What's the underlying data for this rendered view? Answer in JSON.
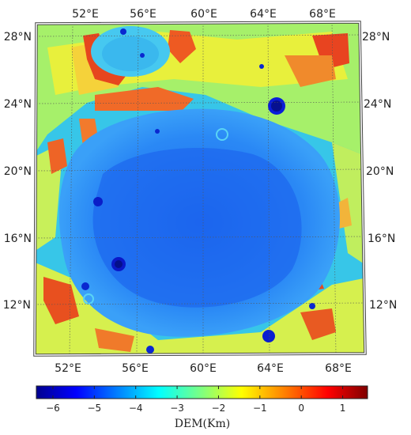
{
  "map": {
    "lon_ticks": [
      "52°E",
      "56°E",
      "60°E",
      "64°E",
      "68°E"
    ],
    "lat_ticks": [
      "28°N",
      "24°N",
      "20°N",
      "16°N",
      "12°N"
    ],
    "colormap": [
      "#00008f",
      "#0000ff",
      "#007fff",
      "#00ffff",
      "#7fff7f",
      "#ffff00",
      "#ff7f00",
      "#ff0000",
      "#7f0000"
    ]
  },
  "colorbar": {
    "title": "DEM(Km)",
    "ticks": [
      "−6",
      "−5",
      "−4",
      "−3",
      "−2",
      "−1",
      "0",
      "1"
    ],
    "range": [
      -6.4,
      1.6
    ]
  }
}
